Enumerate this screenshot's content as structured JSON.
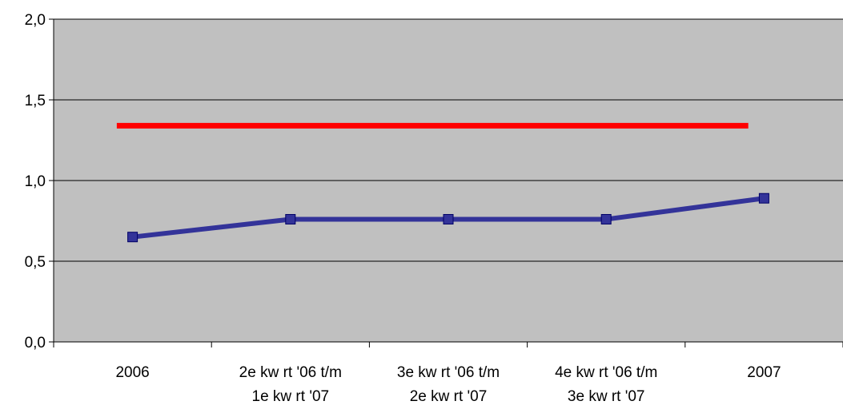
{
  "chart_data": {
    "type": "line",
    "categories": [
      [
        "2006"
      ],
      [
        "2e kw rt '06 t/m",
        "1e kw rt '07"
      ],
      [
        "3e kw rt '06 t/m",
        "2e kw rt '07"
      ],
      [
        "4e kw rt '06 t/m",
        "3e kw rt '07"
      ],
      [
        "2007"
      ]
    ],
    "series": [
      {
        "values": [
          0.65,
          0.76,
          0.76,
          0.76,
          0.89
        ],
        "color": "#333399",
        "marker": "square"
      }
    ],
    "reference_line": {
      "value": 1.34,
      "color": "#ff0000"
    },
    "ylim": [
      0,
      2
    ],
    "yticks": [
      "0,0",
      "0,5",
      "1,0",
      "1,5",
      "2,0"
    ],
    "yticks_values": [
      0,
      0.5,
      1,
      1.5,
      2
    ],
    "grid": true,
    "plot_background": "#c0c0c0",
    "title": "",
    "xlabel": "",
    "ylabel": ""
  }
}
